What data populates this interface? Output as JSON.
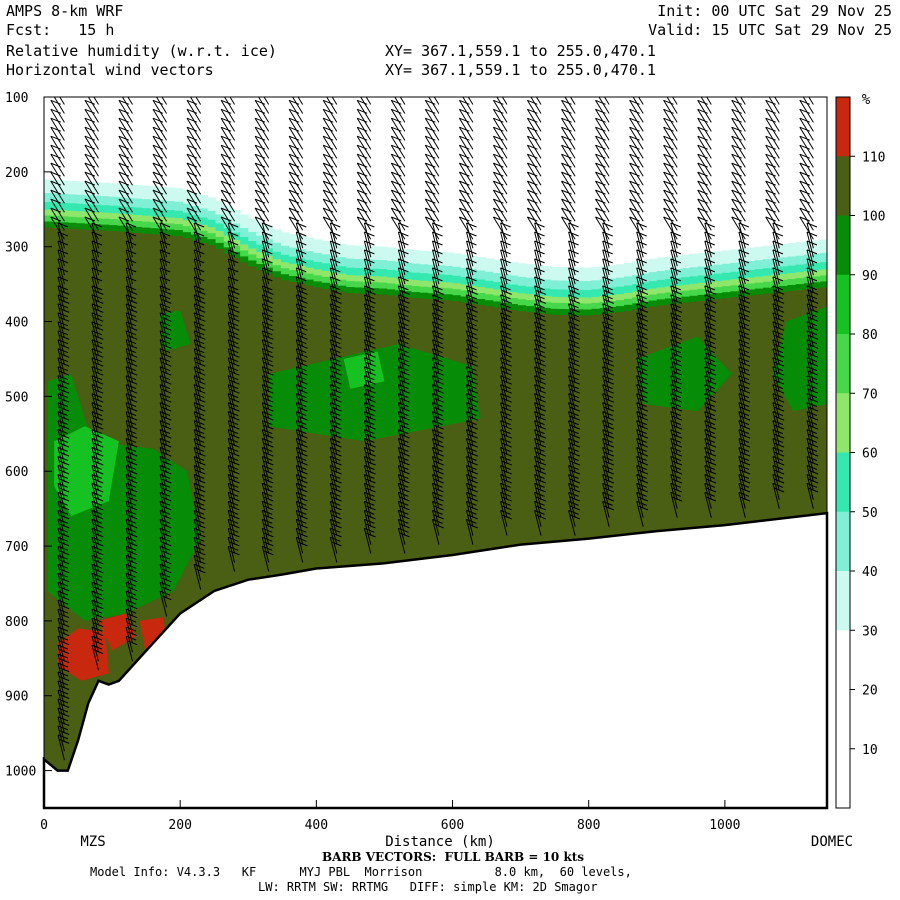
{
  "header": {
    "model": "AMPS 8-km WRF",
    "fcst": "Fcst:   15 h",
    "var1": "Relative humidity (w.r.t. ice)",
    "var2": "Horizontal wind vectors",
    "xy1": "XY= 367.1,559.1 to 255.0,470.1",
    "xy2": "XY= 367.1,559.1 to 255.0,470.1",
    "init": "Init: 00 UTC Sat 29 Nov 25",
    "valid": "Valid: 15 UTC Sat 29 Nov 25"
  },
  "footer": {
    "barb_note": "BARB VECTORS:  FULL BARB = 10 kts",
    "model_info": "Model Info: V4.3.3   KF      MYJ PBL  Morrison          8.0 km,  60 levels,",
    "physics": "LW: RRTM SW: RRTMG   DIFF: simple KM: 2D Smagor"
  },
  "colors": {
    "lt30": "#ffffff",
    "c30_40": "#cdfaf0",
    "c40_50": "#7ff0d6",
    "c50_60": "#35e8b0",
    "c60_70": "#8ee66a",
    "c70_80": "#47d74a",
    "c80_90": "#16c221",
    "c90_100": "#068c06",
    "c100_110": "#4a5e14",
    "gt110": "#c8280e",
    "ground": "#ffffff",
    "barb": "#000000"
  },
  "chart_data": {
    "type": "heatmap",
    "title": "Relative humidity (w.r.t. ice)",
    "overlay": "Horizontal wind vectors",
    "xlabel": "Distance (km)",
    "ylabel": "",
    "xlim": [
      0,
      1150
    ],
    "ylim": [
      1050,
      100
    ],
    "x_ticks": [
      0,
      200,
      400,
      600,
      800,
      1000
    ],
    "y_ticks": [
      100,
      200,
      300,
      400,
      500,
      600,
      700,
      800,
      900,
      1000
    ],
    "endpoint_labels": {
      "left": "MZS",
      "right": "DOMEC"
    },
    "colorbar": {
      "unit": "%",
      "levels": [
        10,
        20,
        30,
        40,
        50,
        60,
        70,
        80,
        90,
        100,
        110
      ],
      "tick_labels": [
        "10",
        "20",
        "30",
        "40",
        "50",
        "60",
        "70",
        "80",
        "90",
        "100",
        "110"
      ]
    },
    "terrain_surface_pressure": {
      "x": [
        0,
        20,
        35,
        50,
        65,
        80,
        95,
        110,
        150,
        200,
        250,
        300,
        350,
        400,
        500,
        600,
        700,
        800,
        900,
        1000,
        1150
      ],
      "p": [
        985,
        1000,
        1000,
        960,
        910,
        880,
        885,
        880,
        840,
        790,
        760,
        745,
        738,
        730,
        723,
        712,
        698,
        690,
        680,
        672,
        656
      ]
    },
    "moist_layer_top_pressure": {
      "x": [
        0,
        100,
        200,
        250,
        300,
        350,
        400,
        450,
        500,
        550,
        600,
        650,
        700,
        750,
        800,
        850,
        900,
        950,
        1000,
        1050,
        1100,
        1150
      ],
      "p": [
        250,
        255,
        262,
        275,
        300,
        320,
        330,
        338,
        340,
        345,
        348,
        355,
        362,
        367,
        368,
        363,
        355,
        350,
        345,
        340,
        335,
        330
      ]
    },
    "barb_columns_x": [
      30,
      80,
      130,
      180,
      230,
      280,
      330,
      380,
      430,
      480,
      530,
      580,
      630,
      680,
      730,
      780,
      830,
      880,
      930,
      980,
      1030,
      1080,
      1130
    ],
    "grid": false,
    "legend": "right"
  }
}
